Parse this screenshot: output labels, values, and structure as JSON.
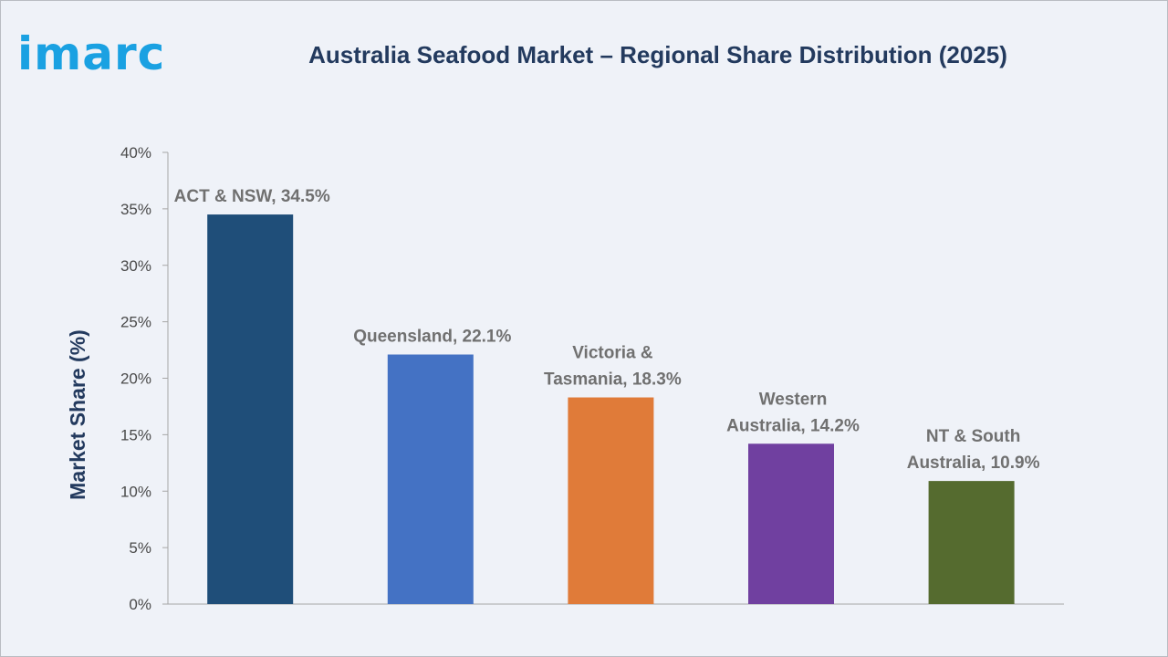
{
  "brand": {
    "logo_text": "imarc"
  },
  "chart_data": {
    "type": "bar",
    "title": "Australia Seafood Market – Regional Share Distribution (2025)",
    "ylabel": "Market Share (%)",
    "xlabel": "",
    "ylim": [
      0,
      40
    ],
    "yticks": [
      "0%",
      "5%",
      "10%",
      "15%",
      "20%",
      "25%",
      "30%",
      "35%",
      "40%"
    ],
    "grid": false,
    "categories": [
      "ACT & NSW",
      "Queensland",
      "Victoria & Tasmania",
      "Western Australia",
      "NT & South Australia"
    ],
    "values": [
      34.5,
      22.1,
      18.3,
      14.2,
      10.9
    ],
    "colors": [
      "#1f4e79",
      "#4472c4",
      "#e07b39",
      "#7040a0",
      "#556b2f"
    ],
    "data_labels": [
      [
        "ACT & NSW, 34.5%"
      ],
      [
        "Queensland, 22.1%"
      ],
      [
        "Victoria &",
        "Tasmania, 18.3%"
      ],
      [
        "Western",
        "Australia, 14.2%"
      ],
      [
        "NT & South",
        "Australia, 10.9%"
      ]
    ]
  }
}
